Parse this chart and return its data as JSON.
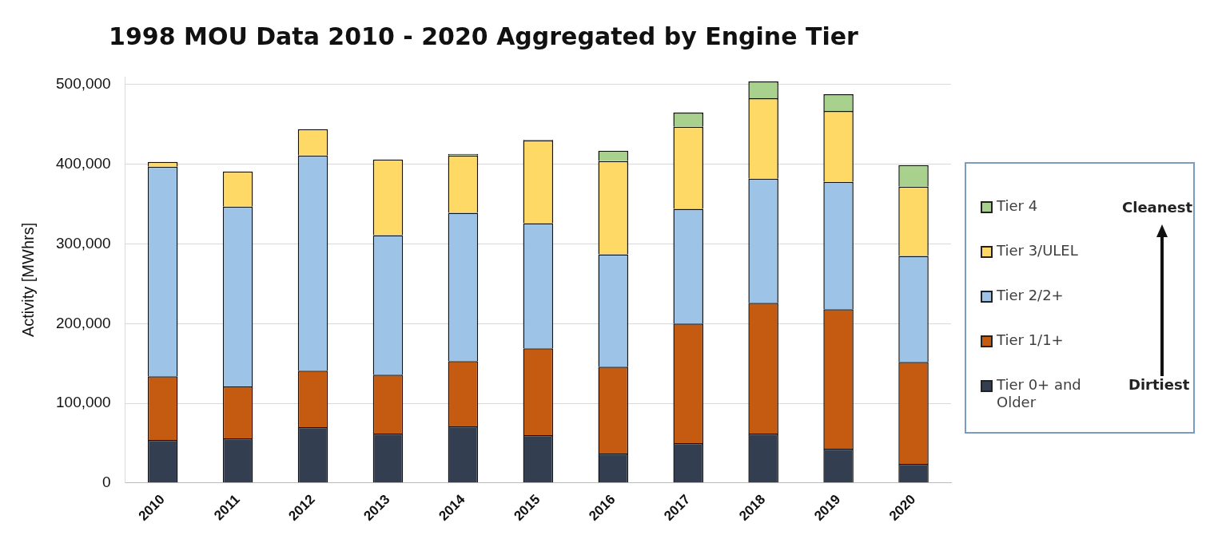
{
  "chart_data": {
    "type": "bar",
    "title": "1998 MOU Data 2010 - 2020 Aggregated by Engine Tier",
    "ylabel": "Activity [MWhrs]",
    "categories": [
      "2010",
      "2011",
      "2012",
      "2013",
      "2014",
      "2015",
      "2016",
      "2017",
      "2018",
      "2019",
      "2020"
    ],
    "stacked": true,
    "series": [
      {
        "name": "Tier 0+ and Older",
        "color": "#333f50",
        "values": [
          54000,
          56000,
          70000,
          62000,
          71000,
          60000,
          37000,
          50000,
          62000,
          43000,
          24000
        ]
      },
      {
        "name": "Tier 1/1+",
        "color": "#c55a11",
        "values": [
          80000,
          65000,
          71000,
          74000,
          82000,
          109000,
          109000,
          150000,
          164000,
          175000,
          128000
        ]
      },
      {
        "name": "Tier 2/2+",
        "color": "#9dc3e6",
        "values": [
          263000,
          226000,
          270000,
          175000,
          186000,
          157000,
          141000,
          144000,
          156000,
          160000,
          133000
        ]
      },
      {
        "name": "Tier 3/ULEL",
        "color": "#ffd966",
        "values": [
          6000,
          44000,
          33000,
          95000,
          72000,
          104000,
          117000,
          103000,
          101000,
          89000,
          87000
        ]
      },
      {
        "name": "Tier 4",
        "color": "#a9d18e",
        "values": [
          0,
          0,
          0,
          0,
          2000,
          1000,
          13000,
          18000,
          21000,
          21000,
          27000
        ]
      }
    ],
    "ylim": [
      0,
      510000
    ],
    "yticks": [
      {
        "value": 0,
        "label": "0"
      },
      {
        "value": 100000,
        "label": "100,000"
      },
      {
        "value": 200000,
        "label": "200,000"
      },
      {
        "value": 300000,
        "label": "300,000"
      },
      {
        "value": 400000,
        "label": "400,000"
      },
      {
        "value": 500000,
        "label": "500,000"
      }
    ],
    "grid": "y",
    "legend": "right",
    "annotations": [
      "Cleanest",
      "Dirtiest"
    ]
  }
}
